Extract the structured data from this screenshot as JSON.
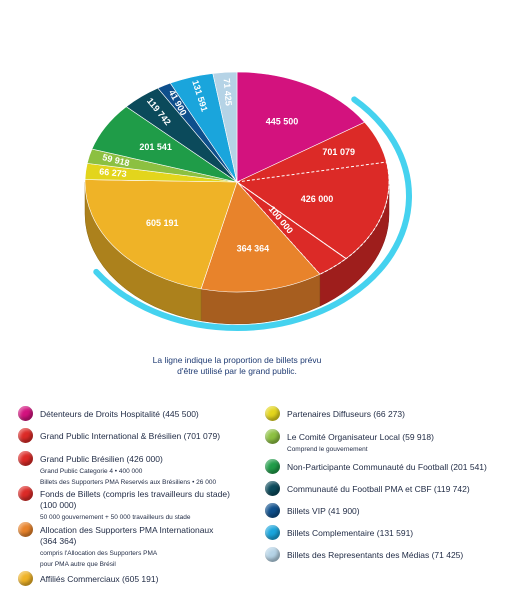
{
  "chart_data": {
    "type": "pie",
    "categories": [
      "Détenteurs de Droits Hospitalité (445 500)",
      "Grand Public International & Brésilien (701 079)",
      "Grand Public Brésilien (426 000)",
      "Fonds de Billets (compris les travailleurs du stade) (100 000)",
      "Allocation des Supporters PMA Internationaux (364 364)",
      "Affiliés Commerciaux (605 191)",
      "Partenaires Diffuseurs (66 273)",
      "Le Comité Organisateur Local (59 918)",
      "Non-Participante Communauté du Football (201 541)",
      "Communauté du Football PMA et CBF (119 742)",
      "Billets VIP (41 900)",
      "Billets Complementaire (131 591)",
      "Billets des Representants des Médias (71 425)"
    ],
    "values": [
      445500,
      701079,
      426000,
      100000,
      364364,
      605191,
      66273,
      59918,
      201541,
      119742,
      41900,
      131591,
      71425
    ],
    "value_labels": [
      "445 500",
      "701 079",
      "426 000",
      "100 000",
      "364 364",
      "605 191",
      "66 273",
      "59 918",
      "201 541",
      "119 742",
      "41 900",
      "131 591",
      "71 425"
    ],
    "colors": [
      "#d3127e",
      "#dc2a27",
      "#dc2a27",
      "#dc2a27",
      "#e8832b",
      "#efb327",
      "#e3d51c",
      "#8cc041",
      "#1f9c48",
      "#0b4a5b",
      "#0e4f8c",
      "#1aa5dc",
      "#b5d3e6"
    ],
    "nested_in": [
      null,
      null,
      1,
      1,
      null,
      null,
      null,
      null,
      null,
      null,
      null,
      null,
      null
    ],
    "details": [
      [],
      [],
      [
        "Grand Public Categorie 4 • 400 000",
        "Billets des Supporters PMA Reservés aux Brésiliens • 26 000"
      ],
      [
        "50 000 gouvernement + 50 000 travailleurs du stade"
      ],
      [
        "compris l'Allocation des Supporters PMA",
        "pour PMA autre que Brésil"
      ],
      [],
      [],
      [
        "Comprend le gouvernement"
      ],
      [],
      [],
      [],
      [],
      []
    ],
    "note": [
      "La ligne indique la proportion de billets prévu",
      "d'être utilisé par le grand public."
    ]
  }
}
